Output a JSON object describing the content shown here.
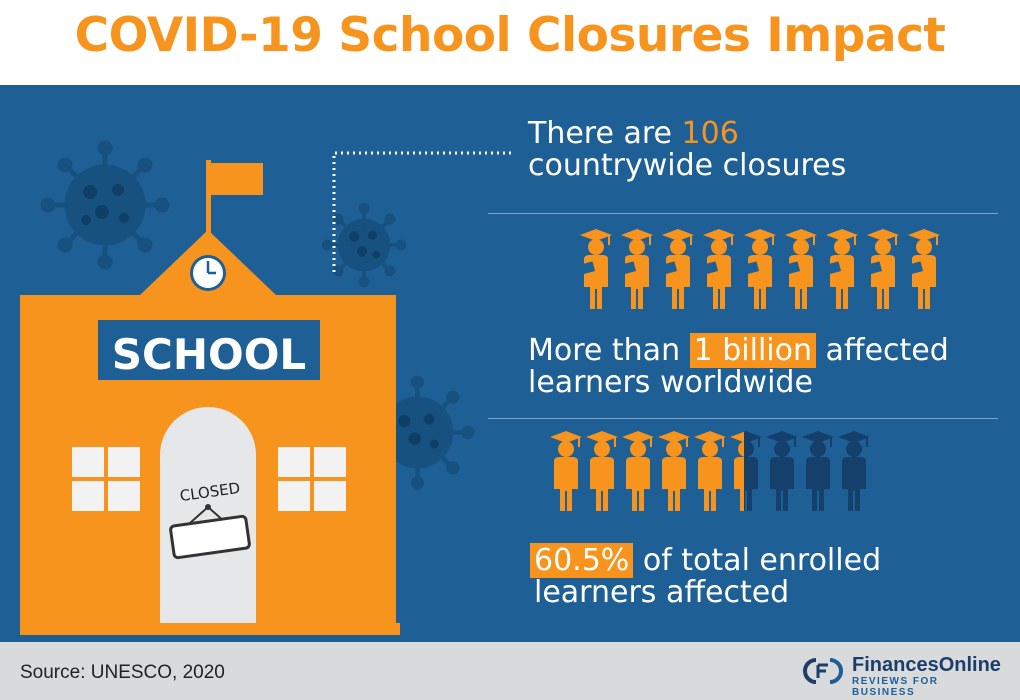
{
  "title": "COVID-19 School Closures Impact",
  "stats": {
    "closures": {
      "prefix": "There are ",
      "highlight": "106",
      "line2": "countrywide closures"
    },
    "learners": {
      "prefix": "More than ",
      "highlight": "1 billion",
      "suffix": " affected",
      "line2": "learners worldwide"
    },
    "percent": {
      "highlight": "60.5%",
      "suffix": " of total enrolled",
      "line2": "learners affected"
    }
  },
  "school": {
    "sign": "SCHOOL",
    "door_sign": "CLOSED"
  },
  "source": "Source: UNESCO, 2020",
  "brand": {
    "name": "FinancesOnline",
    "tagline": "REVIEWS FOR BUSINESS"
  },
  "graduates_affected_fraction": 0.605,
  "colors": {
    "accent": "#f7941d",
    "panel": "#1e5f96",
    "dark_figure": "#14406b",
    "footer": "#d9dadc"
  },
  "icons": [
    "virus-icon",
    "school-building-icon",
    "graduate-icon",
    "clock-icon",
    "flag-icon"
  ]
}
